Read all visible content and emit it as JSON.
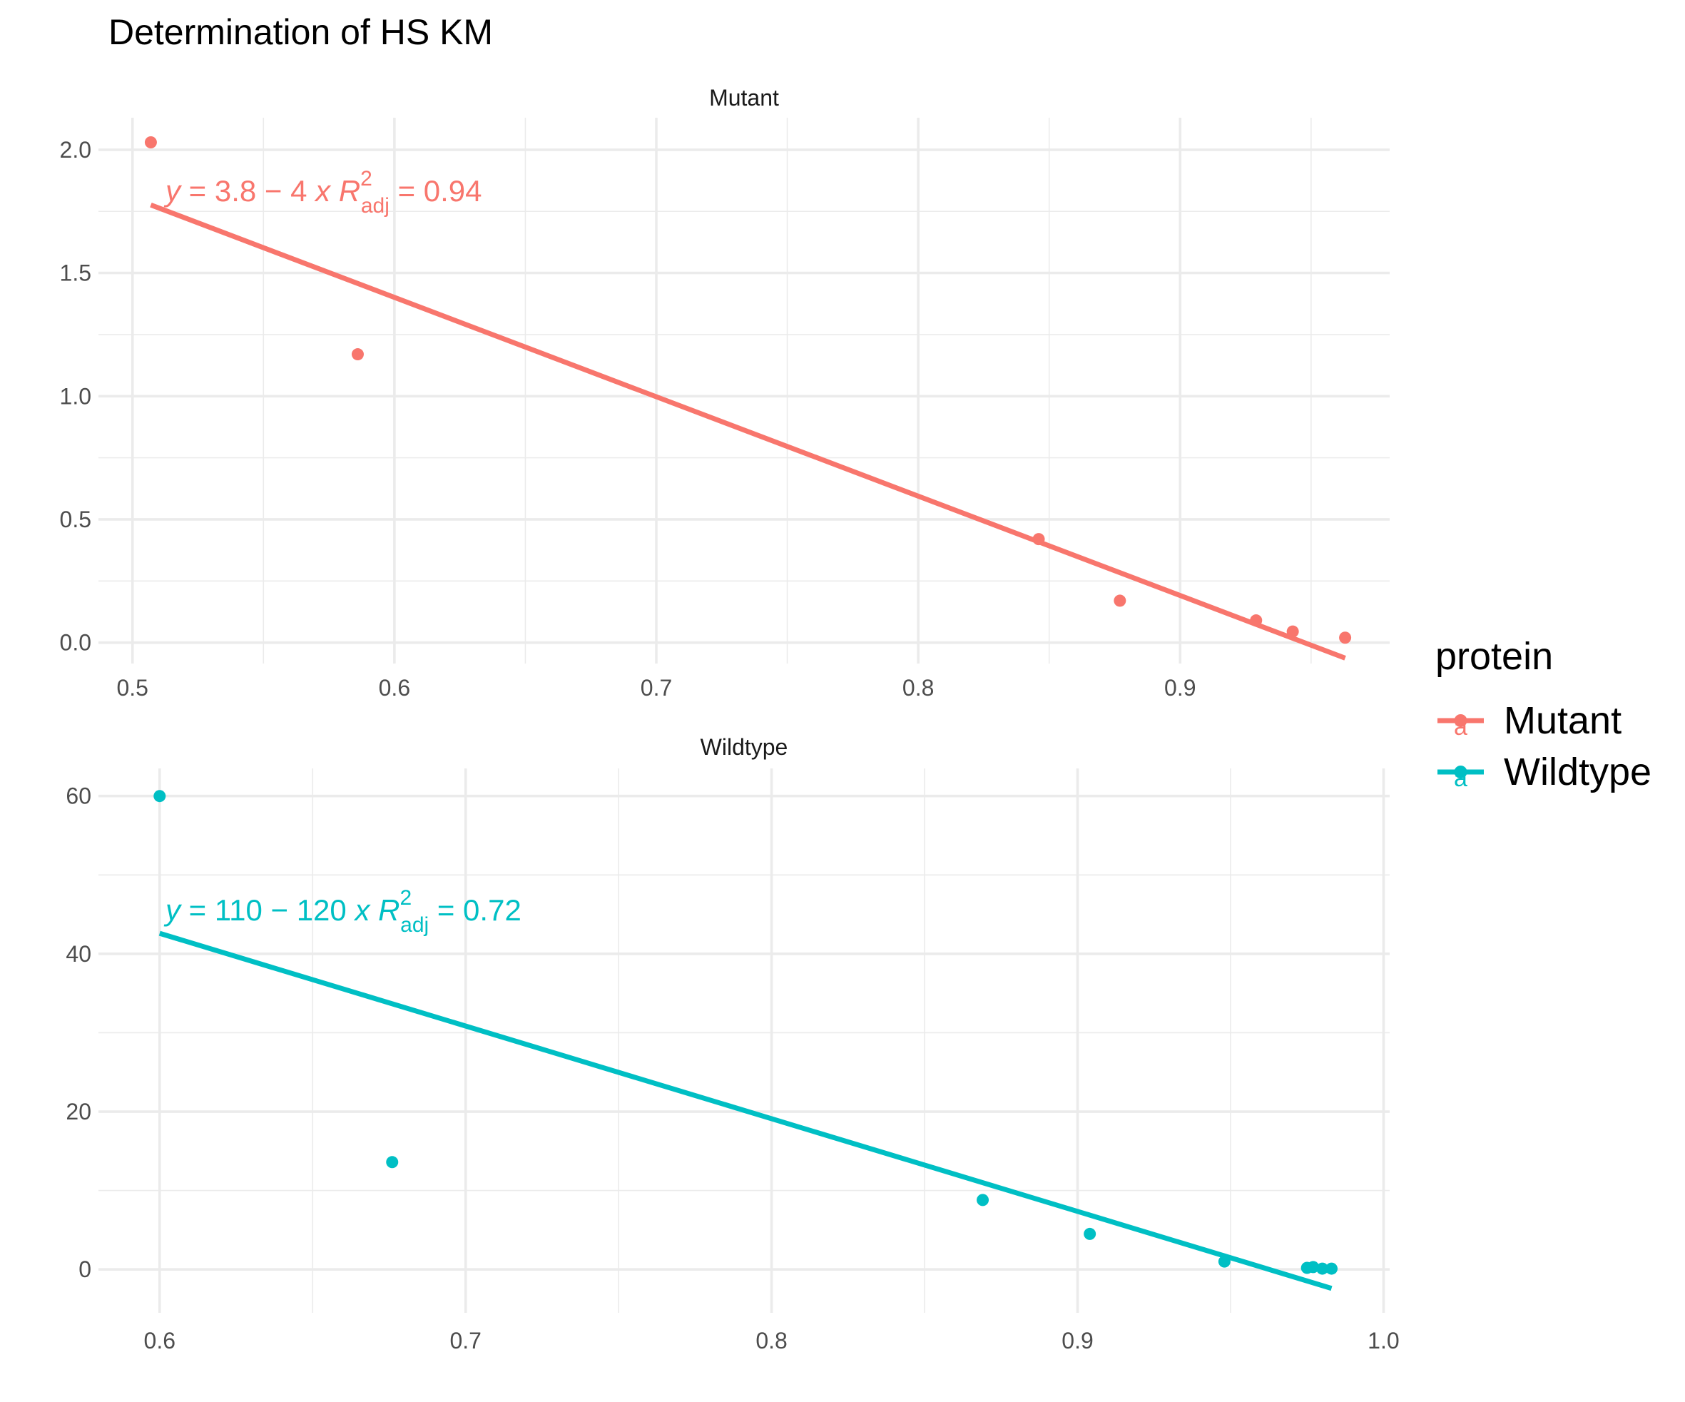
{
  "title": "Determination of HS KM",
  "legend": {
    "title": "protein",
    "items": [
      {
        "label": "Mutant",
        "color": "#F8766D",
        "key_glyph": "a"
      },
      {
        "label": "Wildtype",
        "color": "#00BFC4",
        "key_glyph": "a"
      }
    ],
    "placement": "right"
  },
  "chart_data": [
    {
      "type": "scatter",
      "panel": "Mutant",
      "color": "#F8766D",
      "xlim": [
        0.487,
        0.98
      ],
      "ylim": [
        -0.085,
        2.13
      ],
      "x_ticks": [
        0.5,
        0.6,
        0.7,
        0.8,
        0.9
      ],
      "x_tick_labels": [
        "0.5",
        "0.6",
        "0.7",
        "0.8",
        "0.9"
      ],
      "y_ticks": [
        0.0,
        0.5,
        1.0,
        1.5,
        2.0
      ],
      "y_tick_labels": [
        "0.0",
        "0.5",
        "1.0",
        "1.5",
        "2.0"
      ],
      "points": [
        {
          "x": 0.507,
          "y": 2.03
        },
        {
          "x": 0.586,
          "y": 1.17
        },
        {
          "x": 0.846,
          "y": 0.42
        },
        {
          "x": 0.877,
          "y": 0.17
        },
        {
          "x": 0.929,
          "y": 0.09
        },
        {
          "x": 0.943,
          "y": 0.045
        },
        {
          "x": 0.963,
          "y": 0.02
        }
      ],
      "fit_line": {
        "x": [
          0.507,
          0.963
        ],
        "y": [
          1.776,
          -0.063
        ]
      },
      "equation": {
        "lhs": "y",
        "intercept": "3.8",
        "slope": "4",
        "r2": "0.94"
      },
      "grid": true
    },
    {
      "type": "scatter",
      "panel": "Wildtype",
      "color": "#00BFC4",
      "xlim": [
        0.58,
        1.002
      ],
      "ylim": [
        -5.5,
        63.5
      ],
      "x_ticks": [
        0.6,
        0.7,
        0.8,
        0.9,
        1.0
      ],
      "x_tick_labels": [
        "0.6",
        "0.7",
        "0.8",
        "0.9",
        "1.0"
      ],
      "y_ticks": [
        0,
        20,
        40,
        60
      ],
      "y_tick_labels": [
        "0",
        "20",
        "40",
        "60"
      ],
      "points": [
        {
          "x": 0.6,
          "y": 60
        },
        {
          "x": 0.676,
          "y": 13.6
        },
        {
          "x": 0.869,
          "y": 8.8
        },
        {
          "x": 0.904,
          "y": 4.5
        },
        {
          "x": 0.948,
          "y": 1.0
        },
        {
          "x": 0.975,
          "y": 0.2
        },
        {
          "x": 0.977,
          "y": 0.3
        },
        {
          "x": 0.98,
          "y": 0.1
        },
        {
          "x": 0.983,
          "y": 0.1
        }
      ],
      "fit_line": {
        "x": [
          0.6,
          0.983
        ],
        "y": [
          42.6,
          -2.4
        ]
      },
      "equation": {
        "lhs": "y",
        "intercept": "110",
        "slope": "120",
        "r2": "0.72"
      },
      "grid": true
    }
  ]
}
